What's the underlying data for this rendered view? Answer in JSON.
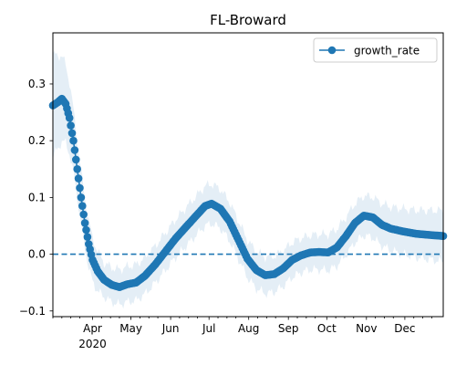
{
  "chart_data": {
    "type": "line",
    "title": "FL-Broward",
    "xlabel": "",
    "ylabel": "",
    "x_type": "date",
    "xlim": [
      "2020-03-01",
      "2020-12-31"
    ],
    "ylim": [
      -0.11,
      0.39
    ],
    "x_ticks": [
      {
        "date": "2020-04-01",
        "label": "Apr",
        "sublabel": "2020"
      },
      {
        "date": "2020-05-01",
        "label": "May"
      },
      {
        "date": "2020-06-01",
        "label": "Jun"
      },
      {
        "date": "2020-07-01",
        "label": "Jul"
      },
      {
        "date": "2020-08-01",
        "label": "Aug"
      },
      {
        "date": "2020-09-01",
        "label": "Sep"
      },
      {
        "date": "2020-10-01",
        "label": "Oct"
      },
      {
        "date": "2020-11-01",
        "label": "Nov"
      },
      {
        "date": "2020-12-01",
        "label": "Dec"
      }
    ],
    "y_ticks": [
      -0.1,
      0.0,
      0.1,
      0.2,
      0.3
    ],
    "y_tick_labels": [
      "−0.1",
      "0.0",
      "0.1",
      "0.2",
      "0.3"
    ],
    "grid": false,
    "legend": {
      "position": "top-right",
      "entries": [
        "growth_rate"
      ]
    },
    "reference_line": {
      "y": 0.0,
      "style": "dashed",
      "color": "#1f77b4"
    },
    "band_color": "#1f77b4",
    "series": [
      {
        "name": "growth_rate",
        "color": "#1f77b4",
        "marker": "circle",
        "band_width": [
          {
            "x": "2020-03-01",
            "w": 0.09
          },
          {
            "x": "2020-03-20",
            "w": 0.05
          },
          {
            "x": "2020-04-10",
            "w": 0.03
          },
          {
            "x": "2020-07-01",
            "w": 0.035
          },
          {
            "x": "2020-09-15",
            "w": 0.03
          },
          {
            "x": "2020-11-01",
            "w": 0.035
          },
          {
            "x": "2020-12-31",
            "w": 0.045
          }
        ],
        "points": [
          {
            "x": "2020-03-01",
            "y": 0.262
          },
          {
            "x": "2020-03-05",
            "y": 0.268
          },
          {
            "x": "2020-03-08",
            "y": 0.274
          },
          {
            "x": "2020-03-11",
            "y": 0.265
          },
          {
            "x": "2020-03-14",
            "y": 0.24
          },
          {
            "x": "2020-03-17",
            "y": 0.2
          },
          {
            "x": "2020-03-20",
            "y": 0.15
          },
          {
            "x": "2020-03-23",
            "y": 0.1
          },
          {
            "x": "2020-03-26",
            "y": 0.055
          },
          {
            "x": "2020-03-29",
            "y": 0.018
          },
          {
            "x": "2020-04-01",
            "y": -0.01
          },
          {
            "x": "2020-04-05",
            "y": -0.03
          },
          {
            "x": "2020-04-10",
            "y": -0.045
          },
          {
            "x": "2020-04-16",
            "y": -0.054
          },
          {
            "x": "2020-04-22",
            "y": -0.058
          },
          {
            "x": "2020-04-28",
            "y": -0.053
          },
          {
            "x": "2020-05-05",
            "y": -0.05
          },
          {
            "x": "2020-05-12",
            "y": -0.038
          },
          {
            "x": "2020-05-20",
            "y": -0.018
          },
          {
            "x": "2020-05-28",
            "y": 0.005
          },
          {
            "x": "2020-06-05",
            "y": 0.028
          },
          {
            "x": "2020-06-13",
            "y": 0.048
          },
          {
            "x": "2020-06-21",
            "y": 0.068
          },
          {
            "x": "2020-06-28",
            "y": 0.085
          },
          {
            "x": "2020-07-03",
            "y": 0.089
          },
          {
            "x": "2020-07-10",
            "y": 0.08
          },
          {
            "x": "2020-07-17",
            "y": 0.058
          },
          {
            "x": "2020-07-24",
            "y": 0.025
          },
          {
            "x": "2020-07-31",
            "y": -0.008
          },
          {
            "x": "2020-08-07",
            "y": -0.028
          },
          {
            "x": "2020-08-14",
            "y": -0.037
          },
          {
            "x": "2020-08-21",
            "y": -0.035
          },
          {
            "x": "2020-08-28",
            "y": -0.025
          },
          {
            "x": "2020-09-04",
            "y": -0.01
          },
          {
            "x": "2020-09-11",
            "y": -0.002
          },
          {
            "x": "2020-09-18",
            "y": 0.003
          },
          {
            "x": "2020-09-25",
            "y": 0.004
          },
          {
            "x": "2020-10-02",
            "y": 0.003
          },
          {
            "x": "2020-10-09",
            "y": 0.012
          },
          {
            "x": "2020-10-16",
            "y": 0.032
          },
          {
            "x": "2020-10-23",
            "y": 0.055
          },
          {
            "x": "2020-10-30",
            "y": 0.068
          },
          {
            "x": "2020-11-06",
            "y": 0.065
          },
          {
            "x": "2020-11-13",
            "y": 0.052
          },
          {
            "x": "2020-11-20",
            "y": 0.045
          },
          {
            "x": "2020-11-30",
            "y": 0.04
          },
          {
            "x": "2020-12-10",
            "y": 0.036
          },
          {
            "x": "2020-12-20",
            "y": 0.034
          },
          {
            "x": "2020-12-31",
            "y": 0.032
          }
        ]
      }
    ]
  }
}
